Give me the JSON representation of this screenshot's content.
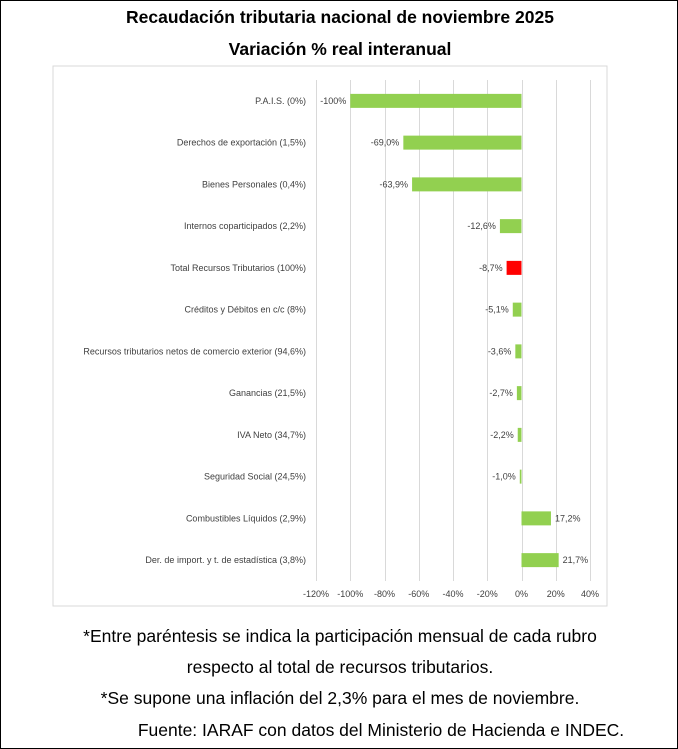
{
  "chart_data": {
    "type": "bar",
    "orientation": "horizontal",
    "title": "Recaudación tributaria nacional de noviembre 2025",
    "subtitle": "Variación % real interanual",
    "categories": [
      "P.A.I.S. (0%)",
      "Derechos de exportación (1,5%)",
      "Bienes Personales (0,4%)",
      "Internos coparticipados (2,2%)",
      "Total Recursos Tributarios (100%)",
      "Créditos y Débitos en c/c (8%)",
      "Recursos tributarios netos de comercio exterior (94,6%)",
      "Ganancias (21,5%)",
      "IVA Neto (34,7%)",
      "Seguridad Social (24,5%)",
      "Combustibles Líquidos (2,9%)",
      "Der. de import. y t. de estadística (3,8%)"
    ],
    "values": [
      -100,
      -69.0,
      -63.9,
      -12.6,
      -8.7,
      -5.1,
      -3.6,
      -2.7,
      -2.2,
      -1.0,
      17.2,
      21.7
    ],
    "data_labels": [
      "-100%",
      "-69,0%",
      "-63,9%",
      "-12,6%",
      "-8,7%",
      "-5,1%",
      "-3,6%",
      "-2,7%",
      "-2,2%",
      "-1,0%",
      "17,2%",
      "21,7%"
    ],
    "xlim": [
      -120,
      40
    ],
    "x_ticks": [
      -120,
      -100,
      -80,
      -60,
      -40,
      -20,
      0,
      20,
      40
    ],
    "x_tick_labels": [
      "-120%",
      "-100%",
      "-80%",
      "-60%",
      "-40%",
      "-20%",
      "0%",
      "20%",
      "40%"
    ],
    "grid": true,
    "colors": {
      "default": "#92d050",
      "highlight": "#ff0000",
      "grid": "#d9d9d9"
    },
    "highlight_index": 4
  },
  "notes": {
    "line1": "*Entre paréntesis se indica la participación mensual de cada rubro",
    "line2": "respecto al total de recursos tributarios.",
    "line3": "*Se supone una inflación del 2,3% para el mes de noviembre.",
    "source": "Fuente: IARAF con datos del Ministerio de Hacienda e INDEC."
  }
}
